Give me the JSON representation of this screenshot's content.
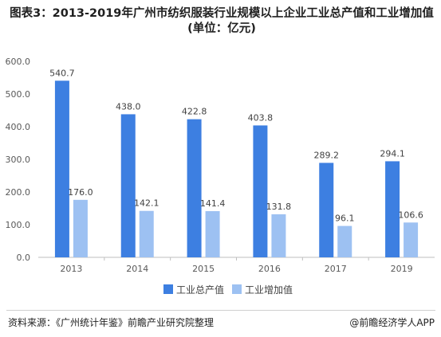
{
  "title": "图表3：2013-2019年广州市纺织服装行业规模以上企业工业总产值和工业增加值(单位：亿元)",
  "source": "资料来源：《广州统计年鉴》前瞻产业研究院整理",
  "brand": "@前瞻经济学人APP",
  "colors": {
    "series_1": "#3d7fe1",
    "series_2": "#9dc1f2",
    "axis": "#bfbfbf",
    "text": "#595959"
  },
  "chart_data": {
    "type": "bar",
    "categories": [
      "2013",
      "2014",
      "2015",
      "2016",
      "2017",
      "2019"
    ],
    "series": [
      {
        "name": "工业总产值",
        "values": [
          540.7,
          438.0,
          422.8,
          403.8,
          289.2,
          294.1
        ],
        "labels": [
          "540.7",
          "438.0",
          "422.8",
          "403.8",
          "289.2",
          "294.1"
        ]
      },
      {
        "name": "工业增加值",
        "values": [
          176.0,
          142.1,
          141.4,
          131.8,
          96.1,
          106.6
        ],
        "labels": [
          "176.0",
          "142.1",
          "141.4",
          "131.8",
          "96.1",
          "106.6"
        ]
      }
    ],
    "yticks": [
      "0.0",
      "100.0",
      "200.0",
      "300.0",
      "400.0",
      "500.0",
      "600.0"
    ],
    "ylim": [
      0,
      600
    ],
    "legend": "bottom-center",
    "grid": false
  }
}
